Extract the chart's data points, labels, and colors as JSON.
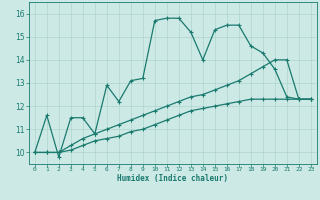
{
  "title": "",
  "xlabel": "Humidex (Indice chaleur)",
  "xlim": [
    -0.5,
    23.5
  ],
  "ylim": [
    9.5,
    16.5
  ],
  "xticks": [
    0,
    1,
    2,
    3,
    4,
    5,
    6,
    7,
    8,
    9,
    10,
    11,
    12,
    13,
    14,
    15,
    16,
    17,
    18,
    19,
    20,
    21,
    22,
    23
  ],
  "yticks": [
    10,
    11,
    12,
    13,
    14,
    15,
    16
  ],
  "bg_color": "#cce9e6",
  "line_color": "#1a7a6e",
  "grid_color": "#aed4cf",
  "line1_y": [
    10.0,
    11.6,
    9.8,
    11.5,
    11.5,
    10.8,
    12.9,
    12.2,
    13.1,
    13.2,
    15.7,
    15.8,
    15.8,
    15.2,
    14.0,
    15.3,
    15.5,
    15.5,
    14.6,
    14.3,
    13.6,
    12.4,
    12.3,
    12.3
  ],
  "line2_y": [
    10.0,
    10.0,
    10.0,
    10.3,
    10.6,
    10.8,
    11.0,
    11.2,
    11.4,
    11.6,
    11.8,
    12.0,
    12.2,
    12.4,
    12.5,
    12.7,
    12.9,
    13.1,
    13.4,
    13.7,
    14.0,
    14.0,
    12.3,
    12.3
  ],
  "line3_y": [
    10.0,
    10.0,
    10.0,
    10.1,
    10.3,
    10.5,
    10.6,
    10.7,
    10.9,
    11.0,
    11.2,
    11.4,
    11.6,
    11.8,
    11.9,
    12.0,
    12.1,
    12.2,
    12.3,
    12.3,
    12.3,
    12.3,
    12.3,
    12.3
  ],
  "markersize": 3.5,
  "linewidth": 0.9
}
